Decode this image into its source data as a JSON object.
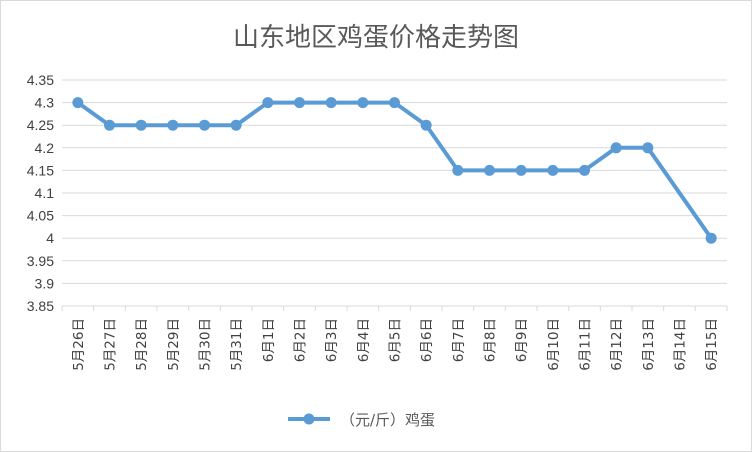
{
  "chart_data": {
    "type": "line",
    "title": "山东地区鸡蛋价格走势图",
    "categories": [
      "5月26日",
      "5月27日",
      "5月28日",
      "5月29日",
      "5月30日",
      "5月31日",
      "6月1日",
      "6月2日",
      "6月3日",
      "6月4日",
      "6月5日",
      "6月6日",
      "6月7日",
      "6月8日",
      "6月9日",
      "6月10日",
      "6月11日",
      "6月12日",
      "6月13日",
      "6月14日",
      "6月15日"
    ],
    "series": [
      {
        "name": "（元/斤）鸡蛋",
        "values": [
          4.3,
          4.25,
          4.25,
          4.25,
          4.25,
          4.25,
          4.3,
          4.3,
          4.3,
          4.3,
          4.3,
          4.25,
          4.15,
          4.15,
          4.15,
          4.15,
          4.15,
          4.2,
          4.2,
          null,
          4.0
        ]
      }
    ],
    "ylim": [
      3.85,
      4.35
    ],
    "yticks": [
      "3.85",
      "3.9",
      "3.95",
      "4",
      "4.05",
      "4.1",
      "4.15",
      "4.2",
      "4.25",
      "4.3",
      "4.35"
    ],
    "grid": "horizontal",
    "legend": "bottom",
    "color": "#5b9bd5"
  }
}
